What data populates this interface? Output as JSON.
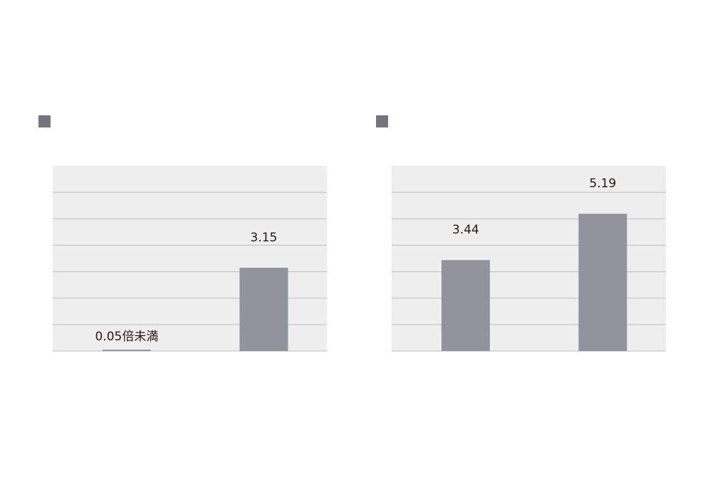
{
  "chart_data": [
    {
      "type": "bar",
      "categories": [
        null,
        null
      ],
      "values": [
        0.05,
        3.15
      ],
      "value_labels": [
        "0.05倍未満",
        "3.15"
      ],
      "color": "#93939e",
      "ylim": [
        0,
        7
      ],
      "yticks": [
        0,
        1,
        2,
        3,
        4,
        5,
        6,
        7
      ],
      "grid": true
    },
    {
      "type": "bar",
      "categories": [
        null,
        null
      ],
      "values": [
        3.44,
        5.19
      ],
      "value_labels": [
        "3.44",
        "5.19"
      ],
      "color": "#93939e",
      "ylim": [
        0,
        7
      ],
      "yticks": [
        0,
        1,
        2,
        3,
        4,
        5,
        6,
        7
      ],
      "grid": true
    }
  ]
}
